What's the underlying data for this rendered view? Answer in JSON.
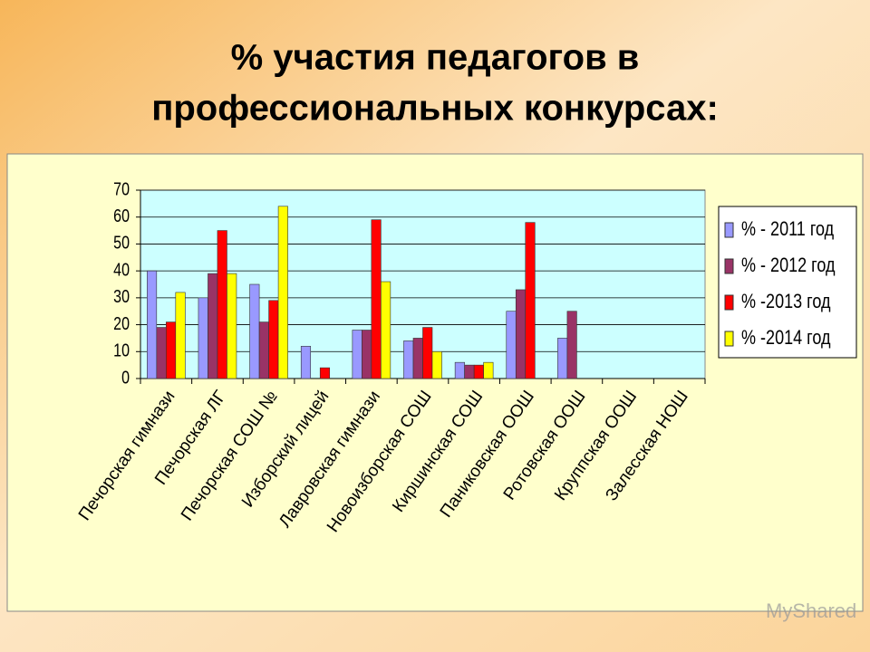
{
  "chart_data": {
    "type": "bar",
    "title": [
      "% участия педагогов в",
      "профессиональных конкурсах:"
    ],
    "categories": [
      "Печорская гимнази",
      "Печорская ЛГ",
      "Печорская СОШ № ",
      "Изборский лицей",
      "Лавровская гимнази",
      "Новоизборская СОШ",
      "Киршинская СОШ",
      "Паниковская ООШ",
      "Ротовская ООШ",
      "Круппская ООШ",
      "Залесская НОШ"
    ],
    "series": [
      {
        "name": "% - 2011 год",
        "color": "#9999ff",
        "values": [
          40,
          30,
          35,
          12,
          18,
          14,
          6,
          25,
          15,
          null,
          null
        ]
      },
      {
        "name": "% - 2012 год",
        "color": "#993366",
        "values": [
          19,
          39,
          21,
          null,
          18,
          15,
          5,
          33,
          25,
          null,
          null
        ]
      },
      {
        "name": "% -2013 год",
        "color": "#ff0000",
        "values": [
          21,
          55,
          29,
          4,
          59,
          19,
          5,
          58,
          null,
          null,
          null
        ]
      },
      {
        "name": "% -2014 год",
        "color": "#ffff00",
        "values": [
          32,
          39,
          64,
          null,
          36,
          10,
          6,
          null,
          null,
          null,
          null
        ]
      }
    ],
    "ylim": [
      0,
      70
    ],
    "yticks": [
      0,
      10,
      20,
      30,
      40,
      50,
      60,
      70
    ],
    "grid": true,
    "legend": "right",
    "watermark": "MyShared"
  }
}
